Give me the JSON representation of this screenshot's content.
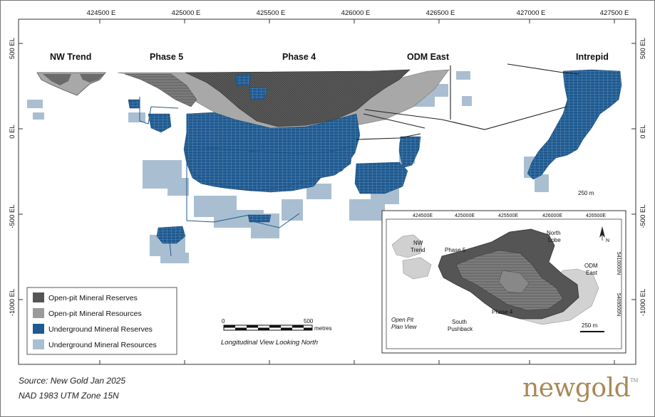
{
  "axes": {
    "easting_labels": [
      "424500 E",
      "425000 E",
      "425500 E",
      "426000 E",
      "426500 E",
      "427000 E",
      "427500 E"
    ],
    "elevation_labels": [
      "500 EL",
      "0 EL",
      "-500 EL",
      "-1000 EL"
    ]
  },
  "zones": {
    "nw_trend": "NW Trend",
    "phase5": "Phase 5",
    "phase4": "Phase 4",
    "odm_east": "ODM East",
    "intrepid": "Intrepid"
  },
  "scale_250": "250 m",
  "legend": {
    "items": [
      {
        "label": "Open-pit Mineral Reserves",
        "color": "#555555"
      },
      {
        "label": "Open-pit Mineral Resources",
        "color": "#9a9a9a"
      },
      {
        "label": "Underground Mineral Reserves",
        "color": "#1f5a91"
      },
      {
        "label": "Underground Mineral Resources",
        "color": "#a9bfd1"
      }
    ]
  },
  "scalebar": {
    "start": "0",
    "end": "500",
    "unit": "metres",
    "caption": "Longitudinal View Looking North"
  },
  "inset": {
    "eastings": [
      "424500E",
      "425000E",
      "425500E",
      "426000E",
      "426500E"
    ],
    "northings": [
      "5410000N",
      "5409500N"
    ],
    "north_label": "N",
    "labels": {
      "nw_trend_1": "NW",
      "nw_trend_2": "Trend",
      "phase5": "Phase 5",
      "north_lobe_1": "North",
      "north_lobe_2": "Lobe",
      "odm_east_1": "ODM",
      "odm_east_2": "East",
      "phase4": "Phase 4",
      "south_pushback_1": "South",
      "south_pushback_2": "Pushback",
      "open_pit_1": "Open Pit",
      "open_pit_2": "Plan View"
    },
    "scale": "250 m"
  },
  "footer": {
    "source": "Source: New Gold Jan 2025",
    "datum": "NAD 1983 UTM Zone 15N"
  },
  "logo": {
    "text": "newgold",
    "mark": "TM"
  }
}
